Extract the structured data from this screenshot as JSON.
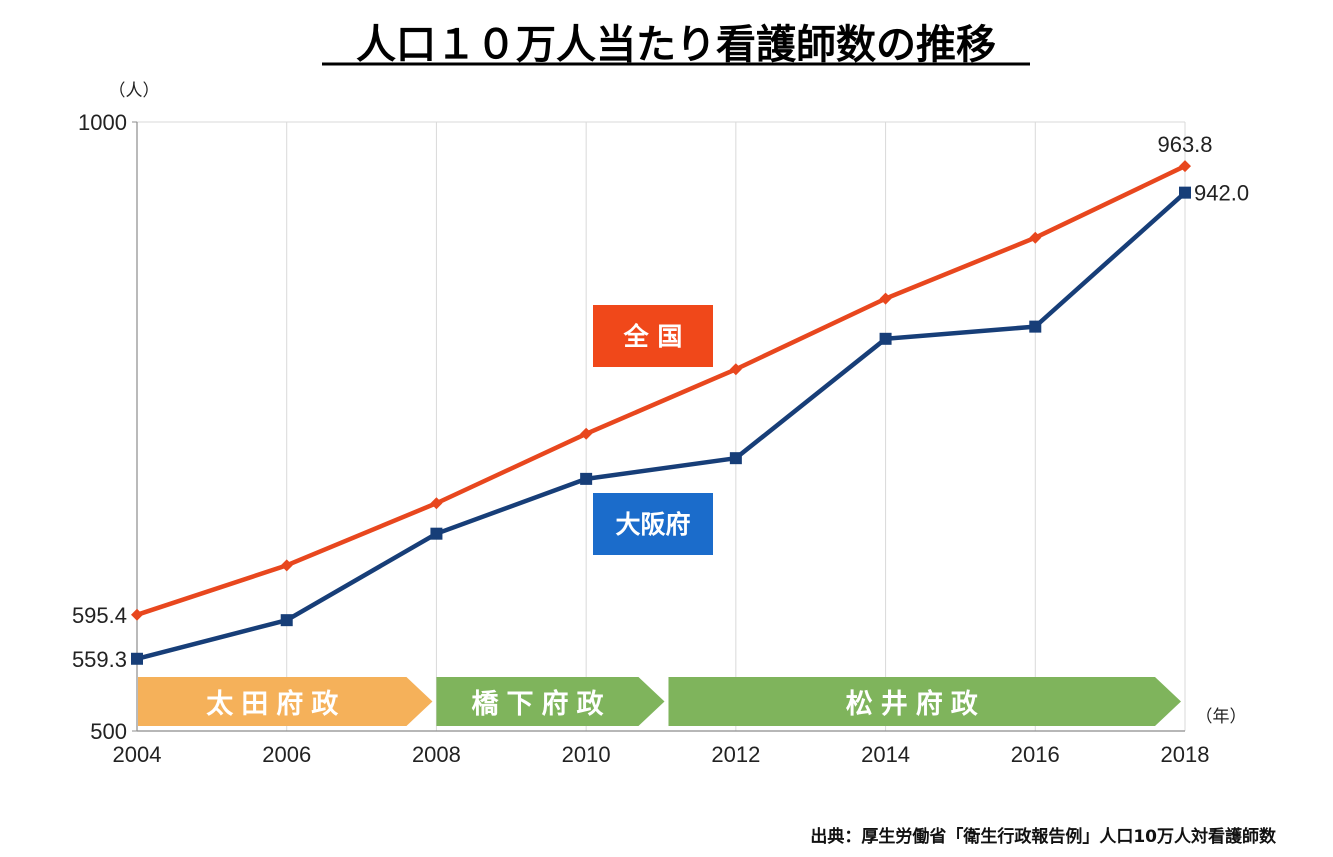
{
  "chart_data": {
    "type": "line",
    "title": "人口１０万人当たり看護師数の推移",
    "ylabel": "（人）",
    "xlabel": "（年）",
    "ylim": [
      500,
      1000
    ],
    "xlim": [
      2004,
      2018
    ],
    "y_ticks": [
      "500",
      "559.3",
      "595.4",
      "1000"
    ],
    "x_ticks": [
      "2004",
      "2006",
      "2008",
      "2010",
      "2012",
      "2014",
      "2016",
      "2018"
    ],
    "grid": true,
    "series": [
      {
        "name": "全 国",
        "color": "#e8471e",
        "marker": "diamond",
        "x": [
          2004,
          2006,
          2008,
          2010,
          2012,
          2014,
          2016,
          2018
        ],
        "values": [
          595.4,
          636,
          687,
          744,
          797,
          855,
          905,
          963.8
        ]
      },
      {
        "name": "大阪府",
        "color": "#173e78",
        "marker": "square",
        "x": [
          2004,
          2006,
          2008,
          2010,
          2012,
          2014,
          2016,
          2018
        ],
        "values": [
          559.3,
          591,
          662,
          707,
          724,
          822,
          832,
          942.0
        ]
      }
    ],
    "annotations": [
      {
        "text": "595.4",
        "series": 0,
        "x": 2004,
        "position": "left-axis"
      },
      {
        "text": "559.3",
        "series": 1,
        "x": 2004,
        "position": "left-axis"
      },
      {
        "text": "963.8",
        "series": 0,
        "x": 2018,
        "position": "above"
      },
      {
        "text": "942.0",
        "series": 1,
        "x": 2018,
        "position": "right"
      }
    ],
    "eras": [
      {
        "label": "太田府政",
        "start": 2004,
        "end": 2008,
        "color": "#f5b15a"
      },
      {
        "label": "橋下府政",
        "start": 2008,
        "end": 2011.1,
        "color": "#7fb45c"
      },
      {
        "label": "松井府政",
        "start": 2011.1,
        "end": 2018,
        "color": "#7fb45c"
      }
    ],
    "legend": [
      {
        "label": "全 国",
        "color": "#f0481a",
        "placement": "center above line"
      },
      {
        "label": "大阪府",
        "color": "#1b6ccb",
        "placement": "center below line"
      }
    ],
    "source": "出典：厚生労働省「衛生行政報告例」人口10万人対看護師数"
  }
}
